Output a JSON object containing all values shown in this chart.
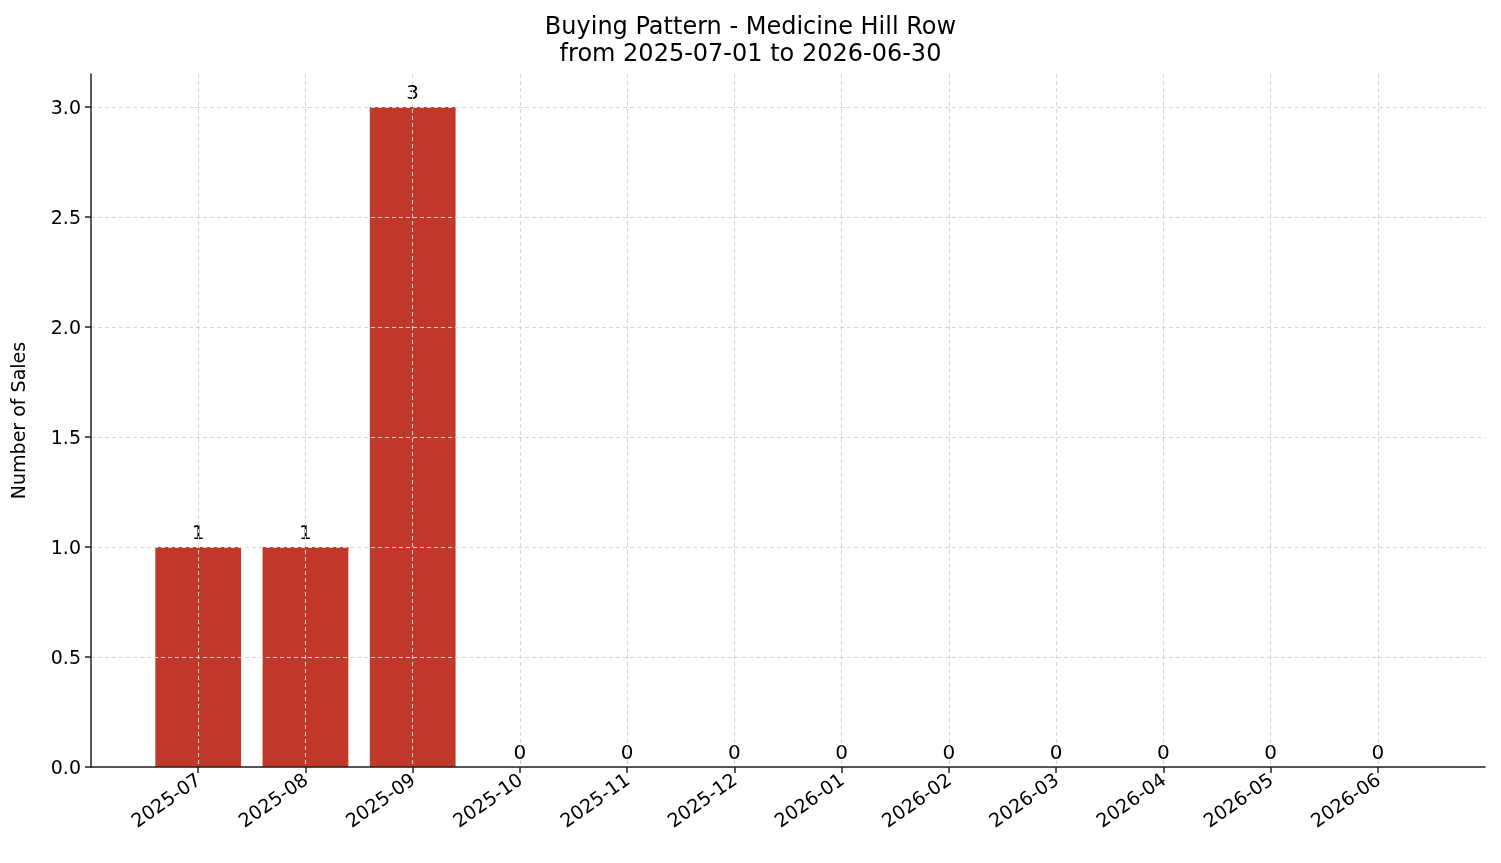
{
  "chart_data": {
    "type": "bar",
    "title": "Buying Pattern - Medicine Hill Row",
    "subtitle": "from 2025-07-01 to 2026-06-30",
    "ylabel": "Number of Sales",
    "categories": [
      "2025-07",
      "2025-08",
      "2025-09",
      "2025-10",
      "2025-11",
      "2025-12",
      "2026-01",
      "2026-02",
      "2026-03",
      "2026-04",
      "2026-05",
      "2026-06"
    ],
    "values": [
      1,
      1,
      3,
      0,
      0,
      0,
      0,
      0,
      0,
      0,
      0,
      0
    ],
    "color": "#c0392b",
    "ylim": [
      0,
      3.15
    ],
    "yticks": [
      {
        "value": 0,
        "label": "0.0"
      },
      {
        "value": 0.5,
        "label": "0.5"
      },
      {
        "value": 1,
        "label": "1.0"
      },
      {
        "value": 1.5,
        "label": "1.5"
      },
      {
        "value": 2,
        "label": "2.0"
      },
      {
        "value": 2.5,
        "label": "2.5"
      },
      {
        "value": 3,
        "label": "3.0"
      }
    ],
    "grid": true,
    "data_labels": true
  }
}
